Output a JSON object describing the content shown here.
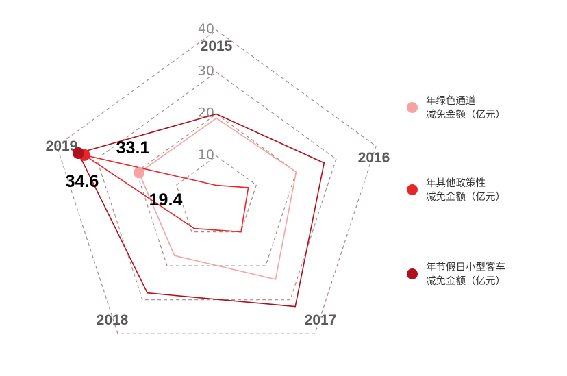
{
  "chart_data": {
    "type": "radar",
    "categories": [
      "2015",
      "2016",
      "2017",
      "2018",
      "2019"
    ],
    "radial_ticks": [
      "10",
      "20",
      "30",
      "40"
    ],
    "rmax": 40,
    "grid": "dashed pentagons",
    "legend_position": "right",
    "series": [
      {
        "name_line1": "年绿色通道",
        "name_line2": "减免金额（亿元）",
        "color": "#f7a3a3",
        "values": [
          19,
          20,
          24,
          17,
          19.4
        ],
        "highlight": {
          "category": "2019",
          "label": "19.4"
        }
      },
      {
        "name_line1": "年其他政策性",
        "name_line2": "减免金额（亿元）",
        "color": "#e8262a",
        "values": [
          3,
          8,
          10,
          9,
          33.1
        ],
        "highlight": {
          "category": "2019",
          "label": "33.1"
        }
      },
      {
        "name_line1": "年节假日小型客车",
        "name_line2": "减免金额（亿元）",
        "color": "#b0101b",
        "values": [
          20,
          27,
          32,
          28,
          34.6
        ],
        "highlight": {
          "category": "2019",
          "label": "34.6"
        }
      }
    ]
  }
}
